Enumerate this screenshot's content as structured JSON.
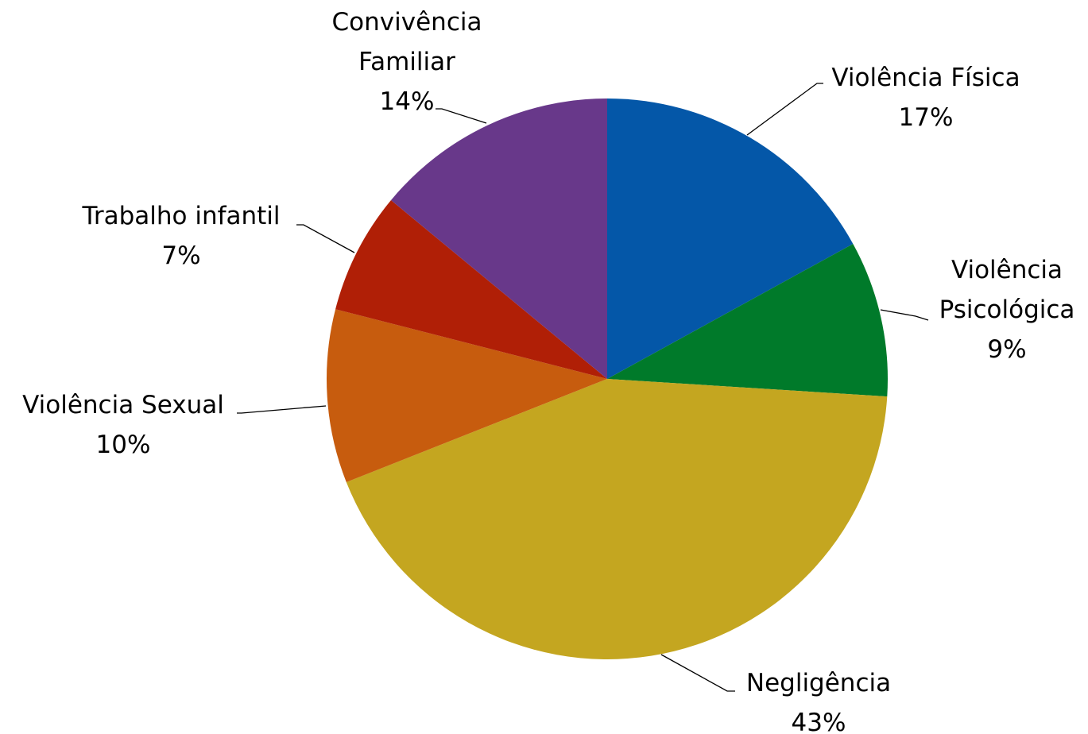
{
  "chart_data": {
    "type": "pie",
    "start": "12 o'clock",
    "direction": "clockwise",
    "slices": [
      {
        "label_lines": [
          "Violência Física"
        ],
        "percent_label": "17%",
        "value": 17,
        "color": "#0457a8"
      },
      {
        "label_lines": [
          "Violência",
          "Psicológica"
        ],
        "percent_label": "9%",
        "value": 9,
        "color": "#007a2a"
      },
      {
        "label_lines": [
          "Negligência"
        ],
        "percent_label": "43%",
        "value": 43,
        "color": "#c4a620"
      },
      {
        "label_lines": [
          "Violência Sexual"
        ],
        "percent_label": "10%",
        "value": 10,
        "color": "#c75c0e"
      },
      {
        "label_lines": [
          "Trabalho infantil"
        ],
        "percent_label": "7%",
        "value": 7,
        "color": "#b01f06"
      },
      {
        "label_lines": [
          "Convivência",
          "Familiar"
        ],
        "percent_label": "14%",
        "value": 14,
        "color": "#68388a"
      }
    ],
    "legend": "none",
    "data_labels": "outside with leader lines"
  }
}
